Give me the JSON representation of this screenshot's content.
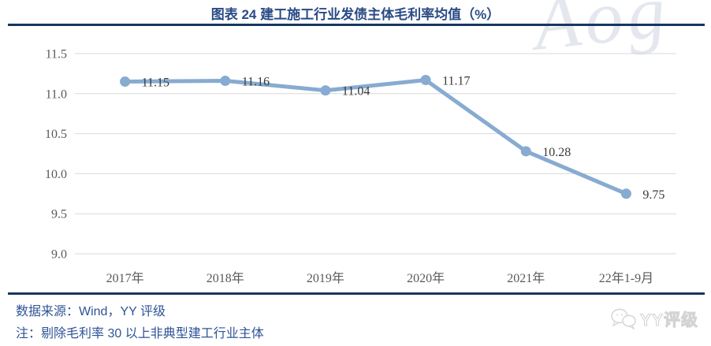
{
  "header": {
    "title": "图表 24 建工施工行业发债主体毛利率均值（%）"
  },
  "watermark": {
    "text": "Aog"
  },
  "chart_data": {
    "type": "line",
    "title": "图表 24 建工施工行业发债主体毛利率均值（%）",
    "categories": [
      "2017年",
      "2018年",
      "2019年",
      "2020年",
      "2021年",
      "22年1-9月"
    ],
    "values": [
      11.15,
      11.16,
      11.04,
      11.17,
      10.28,
      9.75
    ],
    "data_labels": [
      "11.15",
      "11.16",
      "11.04",
      "11.17",
      "10.28",
      "9.75"
    ],
    "ylim": [
      9.0,
      11.5
    ],
    "yticks": [
      11.5,
      11.0,
      10.5,
      10.0,
      9.5,
      9.0
    ],
    "xlabel": "",
    "ylabel": "",
    "grid": "horizontal",
    "legend": "none",
    "line_color": "#87abd1",
    "marker_color": "#87abd1",
    "gridline_color": "#d9d9d9",
    "tick_label_color": "#595959",
    "data_label_color": "#3a3a3a"
  },
  "footer": {
    "source": "数据来源：Wind，YY 评级",
    "note": "注：剔除毛利率 30 以上非典型建工行业主体",
    "logo_text": "YY评级",
    "logo_icon": "wechat-bubbles-icon"
  },
  "colors": {
    "title": "#2a4a86",
    "rule": "#17375e",
    "footer_text": "#2e5496",
    "watermark": "#e4e7ee"
  }
}
